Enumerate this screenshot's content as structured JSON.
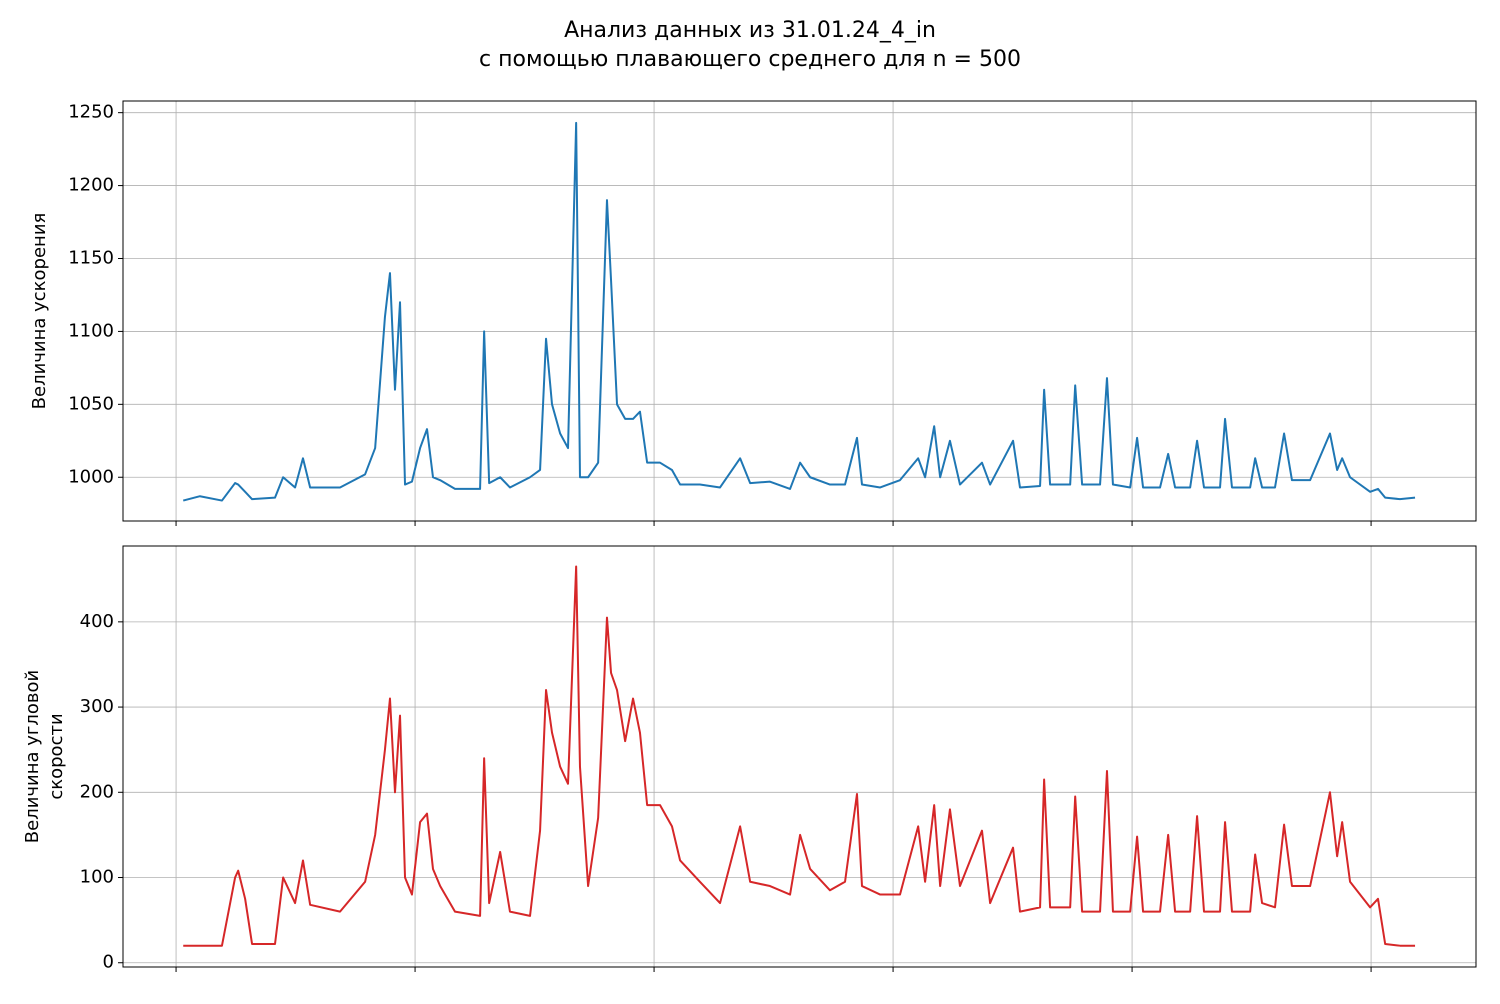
{
  "title": [
    "Анализ данных из 31.01.24_4_in",
    "с помощью плавающего среднего для n = 500"
  ],
  "chart_data": [
    {
      "type": "line",
      "ylabel": [
        "Величина ускорения"
      ],
      "color": "#1f77b4",
      "grid": true,
      "xlim": [
        -222,
        5439
      ],
      "xticks": [
        0,
        1000,
        2000,
        3000,
        4000,
        5000
      ],
      "ylim": [
        970,
        1258
      ],
      "yticks": [
        1000,
        1050,
        1100,
        1150,
        1200,
        1250
      ],
      "x": [
        30,
        100,
        192,
        247,
        260,
        289,
        318,
        414,
        448,
        498,
        531,
        561,
        686,
        791,
        833,
        874,
        895,
        916,
        937,
        958,
        987,
        1021,
        1050,
        1075,
        1105,
        1167,
        1272,
        1289,
        1310,
        1356,
        1397,
        1481,
        1523,
        1548,
        1573,
        1607,
        1640,
        1674,
        1690,
        1724,
        1766,
        1803,
        1820,
        1845,
        1879,
        1912,
        1941,
        1971,
        2025,
        2075,
        2109,
        2192,
        2276,
        2360,
        2402,
        2485,
        2569,
        2611,
        2653,
        2736,
        2799,
        2849,
        2870,
        2946,
        3029,
        3105,
        3134,
        3172,
        3197,
        3238,
        3280,
        3372,
        3406,
        3502,
        3531,
        3615,
        3632,
        3657,
        3741,
        3762,
        3791,
        3866,
        3895,
        3920,
        3992,
        4021,
        4046,
        4117,
        4151,
        4180,
        4243,
        4272,
        4301,
        4368,
        4389,
        4418,
        4494,
        4515,
        4544,
        4598,
        4636,
        4669,
        4745,
        4828,
        4858,
        4879,
        4912,
        4996,
        5029,
        5059,
        5121,
        5184
      ],
      "values": [
        984,
        987,
        984,
        996,
        995,
        990,
        985,
        986,
        1000,
        993,
        1013,
        993,
        993,
        1002,
        1020,
        1110,
        1140,
        1060,
        1120,
        995,
        997,
        1020,
        1033,
        1000,
        998,
        992,
        992,
        1100,
        996,
        1000,
        993,
        1000,
        1005,
        1095,
        1050,
        1030,
        1020,
        1243,
        1000,
        1000,
        1010,
        1190,
        1135,
        1050,
        1040,
        1040,
        1045,
        1010,
        1010,
        1005,
        995,
        995,
        993,
        1013,
        996,
        997,
        992,
        1010,
        1000,
        995,
        995,
        1027,
        995,
        993,
        998,
        1013,
        1000,
        1035,
        1000,
        1025,
        995,
        1010,
        995,
        1025,
        993,
        994,
        1060,
        995,
        995,
        1063,
        995,
        995,
        1068,
        995,
        993,
        1027,
        993,
        993,
        1016,
        993,
        993,
        1025,
        993,
        993,
        1040,
        993,
        993,
        1013,
        993,
        993,
        1030,
        998,
        998,
        1030,
        1005,
        1013,
        1000,
        990,
        992,
        986,
        985,
        986
      ]
    },
    {
      "type": "line",
      "ylabel": [
        "Величина угловой",
        "скорости"
      ],
      "color": "#d62728",
      "grid": true,
      "xlim": [
        -222,
        5439
      ],
      "xticks": [
        0,
        1000,
        2000,
        3000,
        4000,
        5000
      ],
      "ylim": [
        -5,
        489
      ],
      "yticks": [
        0,
        100,
        200,
        300,
        400
      ],
      "x": [
        30,
        100,
        192,
        247,
        260,
        289,
        318,
        414,
        448,
        498,
        531,
        561,
        686,
        791,
        833,
        874,
        895,
        916,
        937,
        958,
        987,
        1021,
        1050,
        1075,
        1105,
        1167,
        1272,
        1289,
        1310,
        1356,
        1397,
        1481,
        1523,
        1548,
        1573,
        1607,
        1640,
        1674,
        1690,
        1724,
        1766,
        1803,
        1820,
        1845,
        1879,
        1912,
        1941,
        1971,
        2025,
        2075,
        2109,
        2192,
        2276,
        2360,
        2402,
        2485,
        2569,
        2611,
        2653,
        2736,
        2799,
        2849,
        2870,
        2946,
        3029,
        3105,
        3134,
        3172,
        3197,
        3238,
        3280,
        3372,
        3406,
        3502,
        3531,
        3615,
        3632,
        3657,
        3741,
        3762,
        3791,
        3866,
        3895,
        3920,
        3992,
        4021,
        4046,
        4117,
        4151,
        4180,
        4243,
        4272,
        4301,
        4368,
        4389,
        4418,
        4494,
        4515,
        4544,
        4598,
        4636,
        4669,
        4745,
        4828,
        4858,
        4879,
        4912,
        4996,
        5029,
        5059,
        5121,
        5184
      ],
      "values": [
        20,
        20,
        20,
        100,
        108,
        75,
        22,
        22,
        100,
        70,
        120,
        68,
        60,
        95,
        150,
        250,
        310,
        200,
        290,
        100,
        80,
        165,
        175,
        110,
        90,
        60,
        55,
        240,
        70,
        130,
        60,
        55,
        155,
        320,
        270,
        230,
        210,
        465,
        230,
        90,
        170,
        405,
        340,
        320,
        260,
        310,
        270,
        185,
        185,
        160,
        120,
        95,
        70,
        160,
        95,
        90,
        80,
        150,
        110,
        85,
        95,
        198,
        90,
        80,
        80,
        160,
        95,
        185,
        90,
        180,
        90,
        155,
        70,
        135,
        60,
        65,
        215,
        65,
        65,
        195,
        60,
        60,
        225,
        60,
        60,
        148,
        60,
        60,
        150,
        60,
        60,
        172,
        60,
        60,
        165,
        60,
        60,
        127,
        70,
        65,
        162,
        90,
        90,
        200,
        125,
        165,
        95,
        65,
        75,
        22,
        20,
        20
      ]
    }
  ]
}
